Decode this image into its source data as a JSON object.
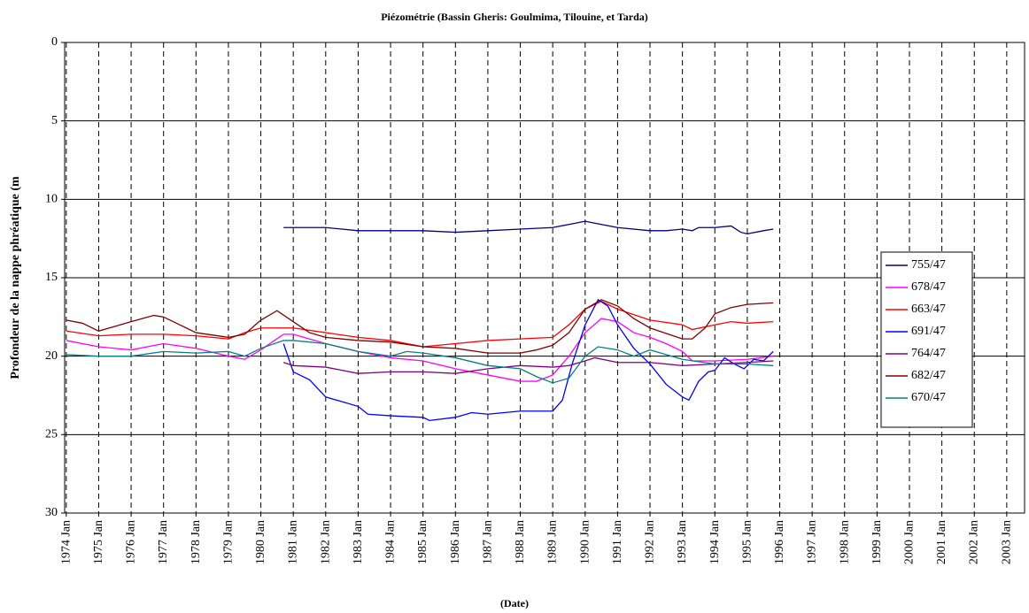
{
  "chart_data": {
    "type": "line",
    "title": "Piézométrie (Bassin Gheris: Goulmima, Tilouine, et Tarda)",
    "xlabel": "(Date)",
    "ylabel": "Profondeur de la nappe phréatique (m",
    "xlim": [
      1973.95,
      2003.55
    ],
    "xticks": [
      {
        "value": 1974,
        "label": "1974 Jan"
      },
      {
        "value": 1975,
        "label": "1975 Jan"
      },
      {
        "value": 1976,
        "label": "1976 Jan"
      },
      {
        "value": 1977,
        "label": "1977 Jan"
      },
      {
        "value": 1978,
        "label": "1978 Jan"
      },
      {
        "value": 1979,
        "label": "1979 Jan"
      },
      {
        "value": 1980,
        "label": "1980 Jan"
      },
      {
        "value": 1981,
        "label": "1981 Jan"
      },
      {
        "value": 1982,
        "label": "1982 Jan"
      },
      {
        "value": 1983,
        "label": "1983 Jan"
      },
      {
        "value": 1984,
        "label": "1984 Jan"
      },
      {
        "value": 1985,
        "label": "1985 Jan"
      },
      {
        "value": 1986,
        "label": "1986 Jan"
      },
      {
        "value": 1987,
        "label": "1987 Jan"
      },
      {
        "value": 1988,
        "label": "1988 Jan"
      },
      {
        "value": 1989,
        "label": "1989 Jan"
      },
      {
        "value": 1990,
        "label": "1990 Jan"
      },
      {
        "value": 1991,
        "label": "1991 Jan"
      },
      {
        "value": 1992,
        "label": "1992 Jan"
      },
      {
        "value": 1993,
        "label": "1993 Jan"
      },
      {
        "value": 1994,
        "label": "1994 Jan"
      },
      {
        "value": 1995,
        "label": "1995 Jan"
      },
      {
        "value": 1996,
        "label": "1996 Jan"
      },
      {
        "value": 1997,
        "label": "1997 Jan"
      },
      {
        "value": 1998,
        "label": "1998 Jan"
      },
      {
        "value": 1999,
        "label": "1999 Jan"
      },
      {
        "value": 2000,
        "label": "2000 Jan"
      },
      {
        "value": 2001,
        "label": "2001 Jan"
      },
      {
        "value": 2002,
        "label": "2002 Jan"
      },
      {
        "value": 2003,
        "label": "2003 Jan"
      }
    ],
    "ylim": [
      30,
      0
    ],
    "yticks": [
      0,
      5,
      10,
      15,
      20,
      25,
      30
    ],
    "inverted_y": true,
    "grid": true,
    "legend": "right",
    "series": [
      {
        "name": "755/47",
        "color": "#000080",
        "x": [
          1980.7,
          1982,
          1983,
          1984,
          1985,
          1986,
          1987,
          1988,
          1989,
          1989.5,
          1990,
          1990.5,
          1991,
          1992,
          1992.5,
          1993,
          1993.3,
          1993.5,
          1994,
          1994.5,
          1994.8,
          1995,
          1995.5,
          1995.8
        ],
        "values": [
          11.8,
          11.8,
          12.0,
          12.0,
          12.0,
          12.1,
          12.0,
          11.9,
          11.8,
          11.6,
          11.4,
          11.6,
          11.8,
          12.0,
          12.0,
          11.9,
          12.0,
          11.8,
          11.8,
          11.7,
          12.1,
          12.2,
          12.0,
          11.9
        ]
      },
      {
        "name": "678/47",
        "color": "#ff00ff",
        "x": [
          1974,
          1975,
          1976,
          1977,
          1978,
          1979,
          1979.5,
          1980,
          1980.7,
          1981,
          1982,
          1983,
          1984,
          1985,
          1986,
          1987,
          1988,
          1988.5,
          1989,
          1989.5,
          1990,
          1990.5,
          1991,
          1991.5,
          1992,
          1992.5,
          1993,
          1993.3,
          1994,
          1995,
          1995.8
        ],
        "values": [
          19.0,
          19.4,
          19.6,
          19.2,
          19.5,
          20.0,
          20.2,
          19.6,
          18.6,
          18.6,
          19.2,
          19.7,
          20.1,
          20.3,
          20.8,
          21.2,
          21.6,
          21.6,
          21.2,
          20.0,
          18.5,
          17.6,
          17.8,
          18.5,
          18.8,
          19.2,
          19.7,
          20.3,
          20.3,
          20.2,
          20.0
        ]
      },
      {
        "name": "663/47",
        "color": "#ff0000",
        "x": [
          1974,
          1975,
          1976,
          1977,
          1978,
          1979,
          1979.5,
          1980,
          1981,
          1982,
          1983,
          1984,
          1985,
          1986,
          1987,
          1988,
          1989,
          1989.5,
          1990,
          1990.5,
          1991,
          1992,
          1993,
          1993.3,
          1994,
          1994.5,
          1995,
          1995.8
        ],
        "values": [
          18.4,
          18.7,
          18.6,
          18.6,
          18.7,
          18.9,
          18.5,
          18.2,
          18.2,
          18.5,
          18.8,
          19.0,
          19.4,
          19.2,
          19.0,
          18.9,
          18.8,
          18.0,
          17.0,
          16.5,
          17.0,
          17.7,
          18.0,
          18.3,
          18.0,
          17.8,
          17.9,
          17.8
        ]
      },
      {
        "name": "691/47",
        "color": "#0000ff",
        "x": [
          1980.7,
          1981,
          1981.5,
          1982,
          1983,
          1983.3,
          1984,
          1985,
          1985.2,
          1986,
          1986.5,
          1987,
          1988,
          1989,
          1989.3,
          1989.6,
          1990,
          1990.4,
          1990.7,
          1991,
          1991.5,
          1992,
          1992.5,
          1993,
          1993.2,
          1993.5,
          1993.8,
          1994,
          1994.3,
          1994.6,
          1994.9,
          1995.2,
          1995.5,
          1995.8
        ],
        "values": [
          19.2,
          21.0,
          21.5,
          22.6,
          23.2,
          23.7,
          23.8,
          23.9,
          24.1,
          23.9,
          23.6,
          23.7,
          23.5,
          23.5,
          22.8,
          20.5,
          18.0,
          16.4,
          16.8,
          18.0,
          19.5,
          20.5,
          21.8,
          22.6,
          22.8,
          21.6,
          21.0,
          20.9,
          20.1,
          20.5,
          20.8,
          20.2,
          20.3,
          19.7
        ]
      },
      {
        "name": "764/47",
        "color": "#800080",
        "x": [
          1980.7,
          1981,
          1982,
          1983,
          1984,
          1985,
          1986,
          1987,
          1988,
          1989,
          1989.5,
          1990,
          1990.3,
          1991,
          1992,
          1993,
          1994,
          1995,
          1995.8
        ],
        "values": [
          20.4,
          20.6,
          20.7,
          21.1,
          21.0,
          21.0,
          21.1,
          20.8,
          20.6,
          20.7,
          20.6,
          20.3,
          20.1,
          20.4,
          20.4,
          20.6,
          20.5,
          20.4,
          20.3
        ]
      },
      {
        "name": "682/47",
        "color": "#800000",
        "x": [
          1974,
          1974.5,
          1975,
          1975.5,
          1976,
          1976.7,
          1977,
          1978,
          1979,
          1979.5,
          1980,
          1980.5,
          1981,
          1981.5,
          1982,
          1983,
          1984,
          1985,
          1986,
          1987,
          1988,
          1988.5,
          1989,
          1989.5,
          1990,
          1990.5,
          1991,
          1991.5,
          1992,
          1993,
          1993.3,
          1993.7,
          1994,
          1994.5,
          1995,
          1995.8
        ],
        "values": [
          17.7,
          17.9,
          18.4,
          18.1,
          17.8,
          17.4,
          17.5,
          18.5,
          18.8,
          18.6,
          17.7,
          17.1,
          17.8,
          18.5,
          18.8,
          19.0,
          19.1,
          19.4,
          19.5,
          19.8,
          19.8,
          19.6,
          19.3,
          18.5,
          17.0,
          16.4,
          16.8,
          17.6,
          18.2,
          18.9,
          18.9,
          18.2,
          17.3,
          16.9,
          16.7,
          16.6
        ]
      },
      {
        "name": "670/47",
        "color": "#008080",
        "x": [
          1974,
          1975,
          1976,
          1977,
          1978,
          1979,
          1979.5,
          1980,
          1980.7,
          1981,
          1982,
          1983,
          1984,
          1984.5,
          1985,
          1986,
          1987,
          1988,
          1988.5,
          1989,
          1989.5,
          1990,
          1990.4,
          1991,
          1991.5,
          1992,
          1993,
          1994,
          1995,
          1995.8
        ],
        "values": [
          19.9,
          20.0,
          20.0,
          19.7,
          19.8,
          19.7,
          20.0,
          19.5,
          19.0,
          19.0,
          19.2,
          19.7,
          20.0,
          19.7,
          19.8,
          20.1,
          20.6,
          20.8,
          21.3,
          21.7,
          21.4,
          20.0,
          19.4,
          19.6,
          20.0,
          19.6,
          20.2,
          20.5,
          20.5,
          20.6
        ]
      }
    ]
  }
}
